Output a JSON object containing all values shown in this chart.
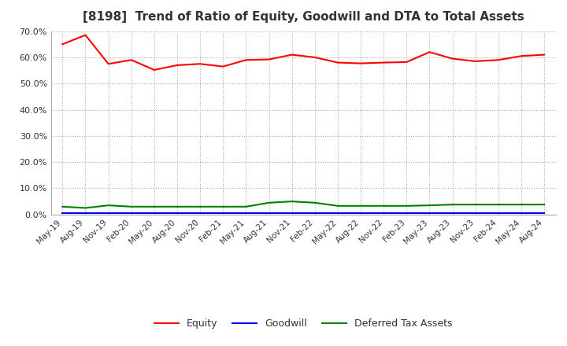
{
  "title": "[8198]  Trend of Ratio of Equity, Goodwill and DTA to Total Assets",
  "labels": [
    "May-19",
    "Aug-19",
    "Nov-19",
    "Feb-20",
    "May-20",
    "Aug-20",
    "Nov-20",
    "Feb-21",
    "May-21",
    "Aug-21",
    "Nov-21",
    "Feb-22",
    "May-22",
    "Aug-22",
    "Nov-22",
    "Feb-23",
    "May-23",
    "Aug-23",
    "Nov-23",
    "Feb-24",
    "May-24",
    "Aug-24"
  ],
  "equity": [
    0.65,
    0.685,
    0.575,
    0.59,
    0.552,
    0.57,
    0.575,
    0.565,
    0.59,
    0.592,
    0.61,
    0.6,
    0.58,
    0.577,
    0.58,
    0.582,
    0.62,
    0.595,
    0.585,
    0.59,
    0.605,
    0.61
  ],
  "goodwill": [
    0.005,
    0.005,
    0.005,
    0.005,
    0.005,
    0.005,
    0.005,
    0.005,
    0.005,
    0.005,
    0.005,
    0.005,
    0.005,
    0.005,
    0.005,
    0.005,
    0.005,
    0.005,
    0.005,
    0.005,
    0.005,
    0.005
  ],
  "dta": [
    0.03,
    0.025,
    0.035,
    0.03,
    0.03,
    0.03,
    0.03,
    0.03,
    0.03,
    0.045,
    0.05,
    0.045,
    0.033,
    0.033,
    0.033,
    0.033,
    0.035,
    0.038,
    0.038,
    0.038,
    0.038,
    0.038
  ],
  "equity_color": "#FF0000",
  "goodwill_color": "#0000FF",
  "dta_color": "#008000",
  "ylim": [
    0.0,
    0.7
  ],
  "yticks": [
    0.0,
    0.1,
    0.2,
    0.3,
    0.4,
    0.5,
    0.6,
    0.7
  ],
  "bg_color": "#FFFFFF",
  "plot_bg_color": "#FFFFFF",
  "grid_color": "#AAAAAA",
  "legend_labels": [
    "Equity",
    "Goodwill",
    "Deferred Tax Assets"
  ],
  "title_color": "#333333"
}
